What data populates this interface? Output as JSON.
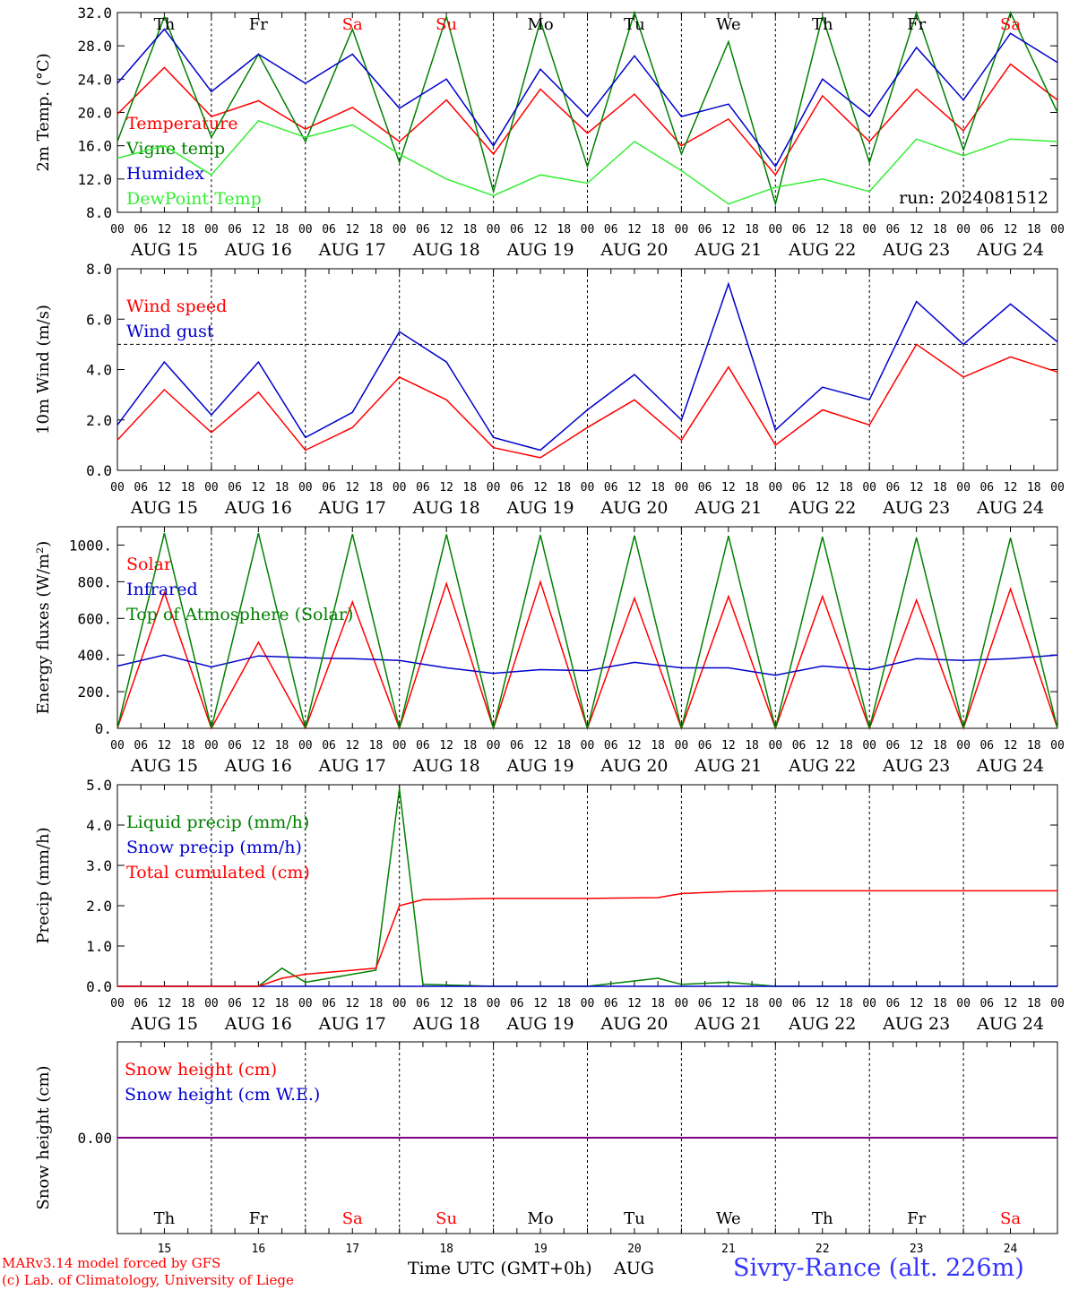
{
  "site_label": "Sivry-Rance (alt. 226m)",
  "credit_lines": [
    "MARv3.14 model forced by GFS",
    "(c) Lab. of Climatology, University of Liege"
  ],
  "x_axis_title": "Time UTC (GMT+0h)",
  "x_axis_month": "AUG",
  "hour_ticks": [
    "00",
    "06",
    "12",
    "18"
  ],
  "days": [
    {
      "abbr": "Th",
      "num": "15",
      "date": "AUG 15",
      "weekend": false
    },
    {
      "abbr": "Fr",
      "num": "16",
      "date": "AUG 16",
      "weekend": false
    },
    {
      "abbr": "Sa",
      "num": "17",
      "date": "AUG 17",
      "weekend": true
    },
    {
      "abbr": "Su",
      "num": "18",
      "date": "AUG 18",
      "weekend": true
    },
    {
      "abbr": "Mo",
      "num": "19",
      "date": "AUG 19",
      "weekend": false
    },
    {
      "abbr": "Tu",
      "num": "20",
      "date": "AUG 20",
      "weekend": false
    },
    {
      "abbr": "We",
      "num": "21",
      "date": "AUG 21",
      "weekend": false
    },
    {
      "abbr": "Th",
      "num": "22",
      "date": "AUG 22",
      "weekend": false
    },
    {
      "abbr": "Fr",
      "num": "23",
      "date": "AUG 23",
      "weekend": false
    },
    {
      "abbr": "Sa",
      "num": "24",
      "date": "AUG 24",
      "weekend": true
    }
  ],
  "colors": {
    "red": "#ff0000",
    "green": "#008000",
    "blue": "#0000cc",
    "lightgreen": "#33ee33",
    "purple": "#800080",
    "site": "#3333ff"
  },
  "chart_data": [
    {
      "type": "line",
      "ylabel": "2m Temp. (°C)",
      "ylim": [
        8,
        32
      ],
      "yticks": [
        "8.0",
        "12.0",
        "16.0",
        "20.0",
        "24.0",
        "28.0",
        "32.0"
      ],
      "annotation": "run: 2024081512",
      "x": [
        "15 00",
        "15 12",
        "16 00",
        "16 12",
        "17 00",
        "17 12",
        "18 00",
        "18 12",
        "19 00",
        "19 12",
        "20 00",
        "20 12",
        "21 00",
        "21 12",
        "22 00",
        "22 12",
        "23 00",
        "23 12",
        "24 00",
        "24 12",
        "25 00"
      ],
      "series": [
        {
          "name": "Temperature",
          "color": "red",
          "values": [
            19.8,
            25.4,
            19.5,
            21.4,
            18.0,
            20.6,
            16.5,
            21.5,
            15.0,
            22.8,
            17.5,
            22.2,
            16.0,
            19.2,
            12.5,
            22.0,
            16.5,
            22.8,
            17.8,
            25.8,
            21.5
          ]
        },
        {
          "name": "Vigne temp",
          "color": "green",
          "values": [
            16.5,
            31.5,
            17.0,
            27.0,
            16.5,
            30.0,
            14.0,
            31.5,
            10.5,
            31.0,
            13.5,
            32.0,
            15.0,
            28.5,
            9.0,
            31.5,
            14.0,
            32.0,
            15.5,
            32.0,
            20.0
          ]
        },
        {
          "name": "Humidex",
          "color": "blue",
          "values": [
            23.5,
            30.0,
            22.5,
            27.0,
            23.5,
            27.0,
            20.5,
            24.0,
            16.0,
            25.2,
            19.5,
            26.8,
            19.5,
            21.0,
            13.5,
            24.0,
            19.5,
            27.8,
            21.5,
            29.5,
            26.0
          ]
        },
        {
          "name": "DewPoint Temp",
          "color": "lightgreen",
          "values": [
            14.5,
            16.0,
            12.5,
            19.0,
            17.0,
            18.5,
            15.0,
            12.0,
            10.0,
            12.5,
            11.5,
            16.5,
            13.0,
            9.0,
            11.0,
            12.0,
            10.5,
            16.8,
            14.8,
            16.8,
            16.5
          ]
        }
      ]
    },
    {
      "type": "line",
      "ylabel": "10m Wind (m/s)",
      "ylim": [
        0,
        8
      ],
      "yticks": [
        "0.0",
        "2.0",
        "4.0",
        "6.0",
        "8.0"
      ],
      "reference_line": 5.0,
      "x": [
        "15 00",
        "15 12",
        "16 00",
        "16 12",
        "17 00",
        "17 12",
        "18 00",
        "18 12",
        "19 00",
        "19 12",
        "20 00",
        "20 12",
        "21 00",
        "21 12",
        "22 00",
        "22 12",
        "23 00",
        "23 12",
        "24 00",
        "24 12",
        "25 00"
      ],
      "series": [
        {
          "name": "Wind speed",
          "color": "red",
          "values": [
            1.2,
            3.2,
            1.5,
            3.1,
            0.8,
            1.7,
            3.7,
            2.8,
            0.9,
            0.5,
            1.7,
            2.8,
            1.2,
            4.1,
            1.0,
            2.4,
            1.8,
            5.0,
            3.7,
            4.5,
            3.9
          ]
        },
        {
          "name": "Wind gust",
          "color": "blue",
          "values": [
            1.8,
            4.3,
            2.2,
            4.3,
            1.3,
            2.3,
            5.5,
            4.3,
            1.3,
            0.8,
            2.4,
            3.8,
            2.0,
            7.4,
            1.6,
            3.3,
            2.8,
            6.7,
            5.0,
            6.6,
            5.1
          ]
        }
      ]
    },
    {
      "type": "line",
      "ylabel": "Energy fluxes (W/m²)",
      "ylim": [
        0,
        1100
      ],
      "yticks": [
        "0.",
        "200.",
        "400.",
        "600.",
        "800.",
        "1000."
      ],
      "x": [
        "15 00",
        "15 12",
        "16 00",
        "16 12",
        "17 00",
        "17 12",
        "18 00",
        "18 12",
        "19 00",
        "19 12",
        "20 00",
        "20 12",
        "21 00",
        "21 12",
        "22 00",
        "22 12",
        "23 00",
        "23 12",
        "24 00",
        "24 12",
        "25 00"
      ],
      "series": [
        {
          "name": "Solar",
          "color": "red",
          "values": [
            0,
            740,
            0,
            470,
            0,
            690,
            0,
            790,
            0,
            800,
            0,
            710,
            0,
            720,
            0,
            720,
            0,
            700,
            0,
            760,
            0
          ]
        },
        {
          "name": "Infrared",
          "color": "blue",
          "values": [
            340,
            400,
            335,
            395,
            385,
            380,
            370,
            330,
            300,
            320,
            315,
            360,
            330,
            330,
            290,
            340,
            320,
            380,
            370,
            380,
            400
          ]
        },
        {
          "name": "Top of Atmosphere (Solar)",
          "color": "green",
          "values": [
            0,
            1065,
            0,
            1065,
            0,
            1060,
            0,
            1058,
            0,
            1055,
            0,
            1052,
            0,
            1050,
            0,
            1045,
            0,
            1042,
            0,
            1040,
            0
          ]
        }
      ]
    },
    {
      "type": "line",
      "ylabel": "Precip (mm/h)",
      "ylim": [
        0,
        5
      ],
      "yticks": [
        "0.0",
        "1.0",
        "2.0",
        "3.0",
        "4.0",
        "5.0"
      ],
      "x": [
        "15 00",
        "16 00",
        "16 12",
        "16 18",
        "17 00",
        "17 18",
        "18 00",
        "18 06",
        "19 00",
        "20 00",
        "20 18",
        "21 00",
        "21 12",
        "22 00",
        "23 00",
        "24 00",
        "25 00"
      ],
      "series": [
        {
          "name": "Liquid precip (mm/h)",
          "color": "green",
          "values": [
            0,
            0,
            0,
            0.45,
            0.1,
            0.4,
            4.9,
            0.05,
            0,
            0,
            0.2,
            0.05,
            0.1,
            0,
            0,
            0,
            0
          ]
        },
        {
          "name": "Snow precip (mm/h)",
          "color": "blue",
          "values": [
            0,
            0,
            0,
            0,
            0,
            0,
            0,
            0,
            0,
            0,
            0,
            0,
            0,
            0,
            0,
            0,
            0
          ]
        },
        {
          "name": "Total cumulated (cm)",
          "color": "red",
          "values": [
            0,
            0,
            0,
            0.2,
            0.3,
            0.45,
            2.0,
            2.15,
            2.18,
            2.18,
            2.2,
            2.3,
            2.35,
            2.37,
            2.37,
            2.37,
            2.37
          ]
        }
      ]
    },
    {
      "type": "line",
      "ylabel": "Snow height (cm)",
      "yticks": [
        "0.00"
      ],
      "series": [
        {
          "name": "Snow height (cm)",
          "color": "red",
          "values": [
            0,
            0
          ]
        },
        {
          "name": "Snow height (cm W.E.)",
          "color": "blue",
          "values": [
            0,
            0
          ]
        }
      ]
    }
  ]
}
